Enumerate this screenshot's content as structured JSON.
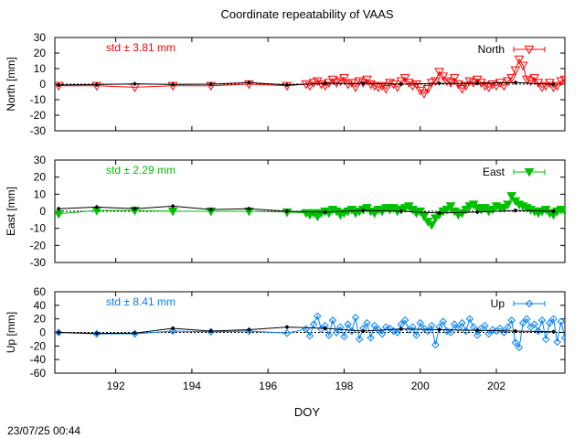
{
  "chart_data": {
    "type": "scatter",
    "title": "Coordinate repeatability of VAAS",
    "xlabel": "DOY",
    "x_ticks": [
      "192",
      "194",
      "196",
      "198",
      "200",
      "202"
    ],
    "xlim": [
      190.4,
      203.8
    ],
    "timestamp": "23/07/25 00:44",
    "colors": {
      "north": "#ff0000",
      "east": "#00c000",
      "up": "#0080ff",
      "reference": "#000000"
    },
    "panels": [
      {
        "id": "north",
        "ylabel": "North [mm]",
        "legend": "North",
        "std_label": "std ± 3.81 mm",
        "marker": "triangle-down-open",
        "ylim": [
          -30,
          30
        ],
        "y_ticks": [
          "30",
          "20",
          "10",
          "0",
          "-10",
          "-20",
          "-30"
        ],
        "reference_x": [
          190.5,
          191.5,
          192.5,
          193.5,
          194.5,
          195.5,
          196.5,
          197.5,
          198.5,
          199.5,
          200.5,
          201.5,
          202.5,
          203.5
        ],
        "reference_y": [
          -0.5,
          -0.3,
          0.2,
          -0.2,
          0,
          1.0,
          -0.5,
          0.5,
          0.5,
          0,
          0.5,
          0.5,
          1.0,
          0
        ],
        "x": [
          190.5,
          191.5,
          192.5,
          193.5,
          194.5,
          195.5,
          196.5,
          197.0,
          197.1,
          197.2,
          197.3,
          197.4,
          197.5,
          197.6,
          197.7,
          197.8,
          197.9,
          198.0,
          198.1,
          198.2,
          198.3,
          198.4,
          198.5,
          198.6,
          198.7,
          198.8,
          198.9,
          199.0,
          199.1,
          199.2,
          199.3,
          199.4,
          199.5,
          199.6,
          199.7,
          199.8,
          199.9,
          200.0,
          200.1,
          200.2,
          200.3,
          200.4,
          200.5,
          200.6,
          200.7,
          200.8,
          200.9,
          201.0,
          201.1,
          201.2,
          201.3,
          201.4,
          201.5,
          201.6,
          201.7,
          201.8,
          201.9,
          202.0,
          202.1,
          202.2,
          202.3,
          202.4,
          202.5,
          202.6,
          202.7,
          202.8,
          202.9,
          203.0,
          203.1,
          203.2,
          203.3,
          203.4,
          203.5,
          203.6,
          203.7,
          203.8
        ],
        "y": [
          -1,
          -1,
          -2,
          -1,
          -1,
          0,
          -1,
          0,
          -1,
          1,
          2,
          0,
          -1,
          1,
          3,
          1,
          2,
          4,
          0,
          1,
          -2,
          2,
          1,
          3,
          0,
          -1,
          -2,
          -1,
          -3,
          1,
          0,
          -2,
          2,
          4,
          1,
          -1,
          0,
          -4,
          -6,
          -3,
          1,
          2,
          8,
          5,
          2,
          1,
          4,
          0,
          -3,
          -1,
          2,
          1,
          3,
          1,
          -1,
          -2,
          0,
          -1,
          1,
          -1,
          2,
          4,
          9,
          16,
          12,
          3,
          2,
          4,
          1,
          -2,
          -1,
          1,
          -2,
          -1,
          2,
          3
        ]
      },
      {
        "id": "east",
        "ylabel": "East [mm]",
        "legend": "East",
        "std_label": "std ± 2.29 mm",
        "marker": "triangle-down-filled",
        "ylim": [
          -30,
          30
        ],
        "y_ticks": [
          "30",
          "20",
          "10",
          "0",
          "-10",
          "-20",
          "-30"
        ],
        "reference_x": [
          190.5,
          191.5,
          192.5,
          193.5,
          194.5,
          195.5,
          196.5,
          197.5,
          198.5,
          199.5,
          200.5,
          201.5,
          202.5,
          203.5
        ],
        "reference_y": [
          1.5,
          2.5,
          1.5,
          3.0,
          1.0,
          1.5,
          0,
          -0.5,
          0.5,
          0,
          -1.0,
          -0.5,
          0.5,
          0
        ],
        "x": [
          190.5,
          191.5,
          192.5,
          193.5,
          194.5,
          195.5,
          196.5,
          197.0,
          197.1,
          197.2,
          197.3,
          197.4,
          197.5,
          197.6,
          197.7,
          197.8,
          197.9,
          198.0,
          198.1,
          198.2,
          198.3,
          198.4,
          198.5,
          198.6,
          198.7,
          198.8,
          198.9,
          199.0,
          199.1,
          199.2,
          199.3,
          199.4,
          199.5,
          199.6,
          199.7,
          199.8,
          199.9,
          200.0,
          200.1,
          200.2,
          200.3,
          200.4,
          200.5,
          200.6,
          200.7,
          200.8,
          200.9,
          201.0,
          201.1,
          201.2,
          201.3,
          201.4,
          201.5,
          201.6,
          201.7,
          201.8,
          201.9,
          202.0,
          202.1,
          202.2,
          202.3,
          202.4,
          202.5,
          202.6,
          202.7,
          202.8,
          202.9,
          203.0,
          203.1,
          203.2,
          203.3,
          203.4,
          203.5,
          203.6,
          203.7,
          203.8
        ],
        "y": [
          -1.5,
          0.5,
          0.5,
          0,
          0,
          0,
          -0.5,
          -1,
          -2,
          -1,
          -3,
          -1,
          0,
          -1,
          1,
          0,
          -2,
          -1,
          0,
          1,
          -1,
          0,
          1,
          2,
          0,
          -1,
          1,
          0,
          2,
          1,
          2,
          0,
          1,
          2,
          3,
          1,
          -1,
          0,
          -3,
          -6,
          -8,
          -4,
          -2,
          0,
          1,
          3,
          0,
          -2,
          -1,
          1,
          3,
          4,
          2,
          1,
          2,
          0,
          1,
          3,
          2,
          2,
          4,
          9,
          6,
          4,
          3,
          2,
          1,
          0,
          -1,
          0,
          1,
          -1,
          -2,
          0,
          1,
          0
        ]
      },
      {
        "id": "up",
        "ylabel": "Up [mm]",
        "legend": "Up",
        "std_label": "std ± 8.41 mm",
        "marker": "diamond-open",
        "ylim": [
          -60,
          60
        ],
        "y_ticks": [
          "60",
          "40",
          "20",
          "0",
          "-20",
          "-40",
          "-60"
        ],
        "reference_x": [
          190.5,
          191.5,
          192.5,
          193.5,
          194.5,
          195.5,
          196.5,
          197.5,
          198.5,
          199.5,
          200.5,
          201.5,
          202.5,
          203.5
        ],
        "reference_y": [
          0,
          -1.5,
          -1.0,
          6.0,
          2.0,
          4.0,
          8.0,
          6.0,
          2.0,
          5.0,
          4.0,
          3.0,
          2.0,
          1.0
        ],
        "x": [
          190.5,
          191.5,
          192.5,
          193.5,
          194.5,
          195.5,
          196.5,
          197.0,
          197.1,
          197.2,
          197.3,
          197.4,
          197.5,
          197.6,
          197.7,
          197.8,
          197.9,
          198.0,
          198.1,
          198.2,
          198.3,
          198.4,
          198.5,
          198.6,
          198.7,
          198.8,
          198.9,
          199.0,
          199.1,
          199.2,
          199.3,
          199.4,
          199.5,
          199.6,
          199.7,
          199.8,
          199.9,
          200.0,
          200.1,
          200.2,
          200.3,
          200.4,
          200.5,
          200.6,
          200.7,
          200.8,
          200.9,
          201.0,
          201.1,
          201.2,
          201.3,
          201.4,
          201.5,
          201.6,
          201.7,
          201.8,
          201.9,
          202.0,
          202.1,
          202.2,
          202.3,
          202.4,
          202.5,
          202.6,
          202.7,
          202.8,
          202.9,
          203.0,
          203.1,
          203.2,
          203.3,
          203.4,
          203.5,
          203.6,
          203.7,
          203.8
        ],
        "y": [
          0,
          -2,
          -2,
          2,
          1,
          2,
          -1,
          5,
          -5,
          12,
          24,
          5,
          10,
          -4,
          18,
          0,
          8,
          -6,
          12,
          2,
          22,
          -10,
          6,
          14,
          -8,
          10,
          4,
          -2,
          8,
          6,
          2,
          0,
          12,
          18,
          4,
          8,
          -4,
          14,
          6,
          2,
          10,
          -18,
          8,
          16,
          2,
          0,
          12,
          6,
          14,
          2,
          20,
          8,
          -4,
          6,
          10,
          -2,
          4,
          2,
          6,
          0,
          8,
          18,
          -15,
          -22,
          14,
          20,
          8,
          12,
          2,
          18,
          -10,
          14,
          20,
          -14,
          16,
          -8
        ]
      }
    ]
  }
}
